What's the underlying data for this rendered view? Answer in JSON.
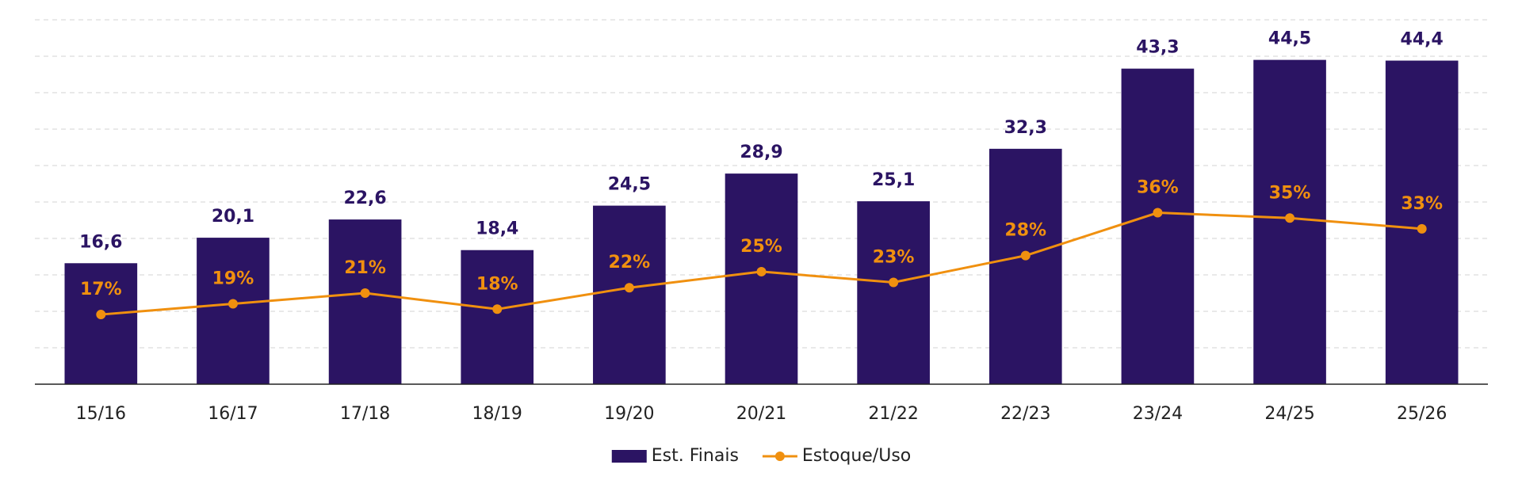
{
  "chart_data": {
    "type": "bar",
    "categories": [
      "15/16",
      "16/17",
      "17/18",
      "18/19",
      "19/20",
      "20/21",
      "21/22",
      "22/23",
      "23/24",
      "24/25",
      "25/26"
    ],
    "series": [
      {
        "name": "Est. Finais",
        "type": "bar",
        "color": "#2b1463",
        "values": [
          16.6,
          20.1,
          22.6,
          18.4,
          24.5,
          28.9,
          25.1,
          32.3,
          43.3,
          44.5,
          44.4
        ],
        "value_labels": [
          "16,6",
          "20,1",
          "22,6",
          "18,4",
          "24,5",
          "28,9",
          "25,1",
          "32,3",
          "43,3",
          "44,5",
          "44,4"
        ]
      },
      {
        "name": "Estoque/Uso",
        "type": "line",
        "axis": "y2",
        "color": "#f0900f",
        "values": [
          17,
          19,
          21,
          18,
          22,
          25,
          23,
          28,
          36,
          35,
          33
        ],
        "value_labels": [
          "17%",
          "19%",
          "21%",
          "18%",
          "22%",
          "25%",
          "23%",
          "28%",
          "36%",
          "35%",
          "33%"
        ]
      }
    ],
    "ylim": [
      0,
      50
    ],
    "yticks": [
      0,
      5,
      10,
      15,
      20,
      25,
      30,
      35,
      40,
      45,
      50
    ],
    "y2lim": [
      4,
      72
    ],
    "grid": true,
    "legend": "bottom"
  }
}
